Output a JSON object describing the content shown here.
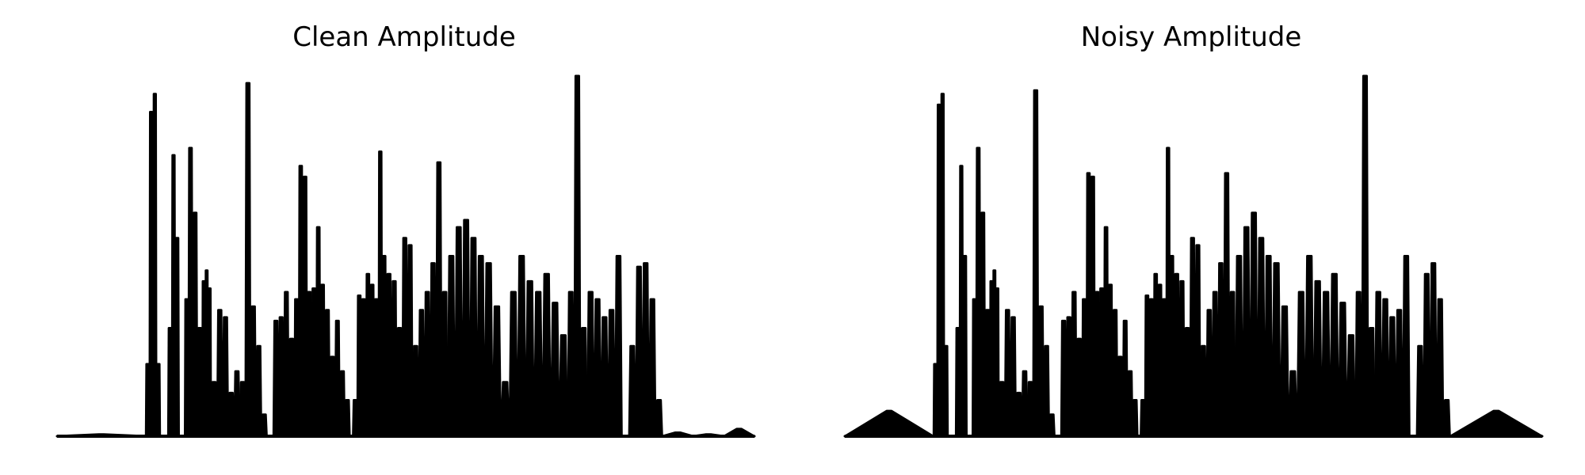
{
  "figure": {
    "background": "#ffffff",
    "line_color": "#000000"
  },
  "chart_data": [
    {
      "type": "area",
      "title": "Clean Amplitude",
      "xlabel": "",
      "ylabel": "",
      "axes_visible": false,
      "grid": false,
      "ylim": [
        0,
        1
      ],
      "segments": [
        {
          "start": 0.0,
          "end": 0.127,
          "peaks": [
            0.005
          ]
        },
        {
          "start": 0.127,
          "end": 0.148,
          "peaks": [
            0.2,
            0.9,
            0.95,
            0.2
          ]
        },
        {
          "start": 0.159,
          "end": 0.175,
          "peaks": [
            0.3,
            0.78,
            0.55
          ]
        },
        {
          "start": 0.183,
          "end": 0.188,
          "peaks": [
            0.38
          ]
        },
        {
          "start": 0.188,
          "end": 0.208,
          "peaks": [
            0.8,
            0.62,
            0.3
          ]
        },
        {
          "start": 0.208,
          "end": 0.221,
          "peaks": [
            0.43,
            0.46,
            0.41
          ]
        },
        {
          "start": 0.221,
          "end": 0.262,
          "peaks": [
            0.15,
            0.35,
            0.33,
            0.12,
            0.18
          ]
        },
        {
          "start": 0.262,
          "end": 0.301,
          "peaks": [
            0.15,
            0.98,
            0.36,
            0.25,
            0.06
          ]
        },
        {
          "start": 0.31,
          "end": 0.34,
          "peaks": [
            0.32,
            0.33,
            0.4,
            0.27
          ]
        },
        {
          "start": 0.34,
          "end": 0.365,
          "peaks": [
            0.38,
            0.75,
            0.72,
            0.4
          ]
        },
        {
          "start": 0.365,
          "end": 0.384,
          "peaks": [
            0.41,
            0.58,
            0.42
          ]
        },
        {
          "start": 0.384,
          "end": 0.42,
          "peaks": [
            0.35,
            0.22,
            0.32,
            0.18,
            0.1
          ]
        },
        {
          "start": 0.424,
          "end": 0.455,
          "peaks": [
            0.1,
            0.39,
            0.38,
            0.45,
            0.42
          ]
        },
        {
          "start": 0.455,
          "end": 0.472,
          "peaks": [
            0.38,
            0.79,
            0.5
          ]
        },
        {
          "start": 0.472,
          "end": 0.51,
          "peaks": [
            0.45,
            0.43,
            0.3,
            0.55,
            0.53
          ]
        },
        {
          "start": 0.51,
          "end": 0.56,
          "peaks": [
            0.25,
            0.35,
            0.4,
            0.48,
            0.76,
            0.4
          ]
        },
        {
          "start": 0.56,
          "end": 0.613,
          "peaks": [
            0.5,
            0.58,
            0.6,
            0.55,
            0.5
          ]
        },
        {
          "start": 0.613,
          "end": 0.672,
          "peaks": [
            0.48,
            0.36,
            0.15,
            0.4,
            0.5
          ]
        },
        {
          "start": 0.672,
          "end": 0.732,
          "peaks": [
            0.43,
            0.4,
            0.45,
            0.37,
            0.28
          ]
        },
        {
          "start": 0.732,
          "end": 0.76,
          "peaks": [
            0.4,
            1.0,
            0.3
          ]
        },
        {
          "start": 0.76,
          "end": 0.81,
          "peaks": [
            0.4,
            0.38,
            0.33,
            0.35,
            0.5
          ]
        },
        {
          "start": 0.82,
          "end": 0.868,
          "peaks": [
            0.25,
            0.47,
            0.48,
            0.38,
            0.1
          ]
        },
        {
          "start": 0.868,
          "end": 1.0,
          "peaks": [
            0.01,
            0.005,
            0.02
          ]
        }
      ]
    },
    {
      "type": "area",
      "title": "Noisy Amplitude",
      "xlabel": "",
      "ylabel": "",
      "axes_visible": false,
      "grid": false,
      "ylim": [
        0,
        1
      ],
      "segments": [
        {
          "start": 0.0,
          "end": 0.127,
          "peaks": [
            0.07
          ]
        },
        {
          "start": 0.127,
          "end": 0.148,
          "peaks": [
            0.2,
            0.92,
            0.95,
            0.25
          ]
        },
        {
          "start": 0.159,
          "end": 0.175,
          "peaks": [
            0.3,
            0.75,
            0.5
          ]
        },
        {
          "start": 0.183,
          "end": 0.188,
          "peaks": [
            0.38
          ]
        },
        {
          "start": 0.188,
          "end": 0.208,
          "peaks": [
            0.8,
            0.62,
            0.35
          ]
        },
        {
          "start": 0.208,
          "end": 0.221,
          "peaks": [
            0.43,
            0.46,
            0.41
          ]
        },
        {
          "start": 0.221,
          "end": 0.262,
          "peaks": [
            0.15,
            0.35,
            0.33,
            0.12,
            0.18
          ]
        },
        {
          "start": 0.262,
          "end": 0.301,
          "peaks": [
            0.15,
            0.96,
            0.36,
            0.25,
            0.06
          ]
        },
        {
          "start": 0.31,
          "end": 0.34,
          "peaks": [
            0.32,
            0.33,
            0.4,
            0.27
          ]
        },
        {
          "start": 0.34,
          "end": 0.365,
          "peaks": [
            0.38,
            0.73,
            0.72,
            0.4
          ]
        },
        {
          "start": 0.365,
          "end": 0.384,
          "peaks": [
            0.41,
            0.58,
            0.42
          ]
        },
        {
          "start": 0.384,
          "end": 0.42,
          "peaks": [
            0.35,
            0.22,
            0.32,
            0.18,
            0.1
          ]
        },
        {
          "start": 0.424,
          "end": 0.455,
          "peaks": [
            0.1,
            0.39,
            0.38,
            0.45,
            0.42
          ]
        },
        {
          "start": 0.455,
          "end": 0.472,
          "peaks": [
            0.38,
            0.8,
            0.5
          ]
        },
        {
          "start": 0.472,
          "end": 0.51,
          "peaks": [
            0.45,
            0.43,
            0.3,
            0.55,
            0.53
          ]
        },
        {
          "start": 0.51,
          "end": 0.56,
          "peaks": [
            0.25,
            0.35,
            0.4,
            0.48,
            0.73,
            0.4
          ]
        },
        {
          "start": 0.56,
          "end": 0.613,
          "peaks": [
            0.5,
            0.58,
            0.62,
            0.55,
            0.5
          ]
        },
        {
          "start": 0.613,
          "end": 0.672,
          "peaks": [
            0.48,
            0.36,
            0.18,
            0.4,
            0.5
          ]
        },
        {
          "start": 0.672,
          "end": 0.732,
          "peaks": [
            0.43,
            0.4,
            0.45,
            0.37,
            0.28
          ]
        },
        {
          "start": 0.732,
          "end": 0.76,
          "peaks": [
            0.4,
            1.0,
            0.3
          ]
        },
        {
          "start": 0.76,
          "end": 0.81,
          "peaks": [
            0.4,
            0.38,
            0.33,
            0.35,
            0.5
          ]
        },
        {
          "start": 0.82,
          "end": 0.868,
          "peaks": [
            0.25,
            0.45,
            0.48,
            0.38,
            0.1
          ]
        },
        {
          "start": 0.868,
          "end": 1.0,
          "peaks": [
            0.07
          ]
        }
      ]
    }
  ]
}
